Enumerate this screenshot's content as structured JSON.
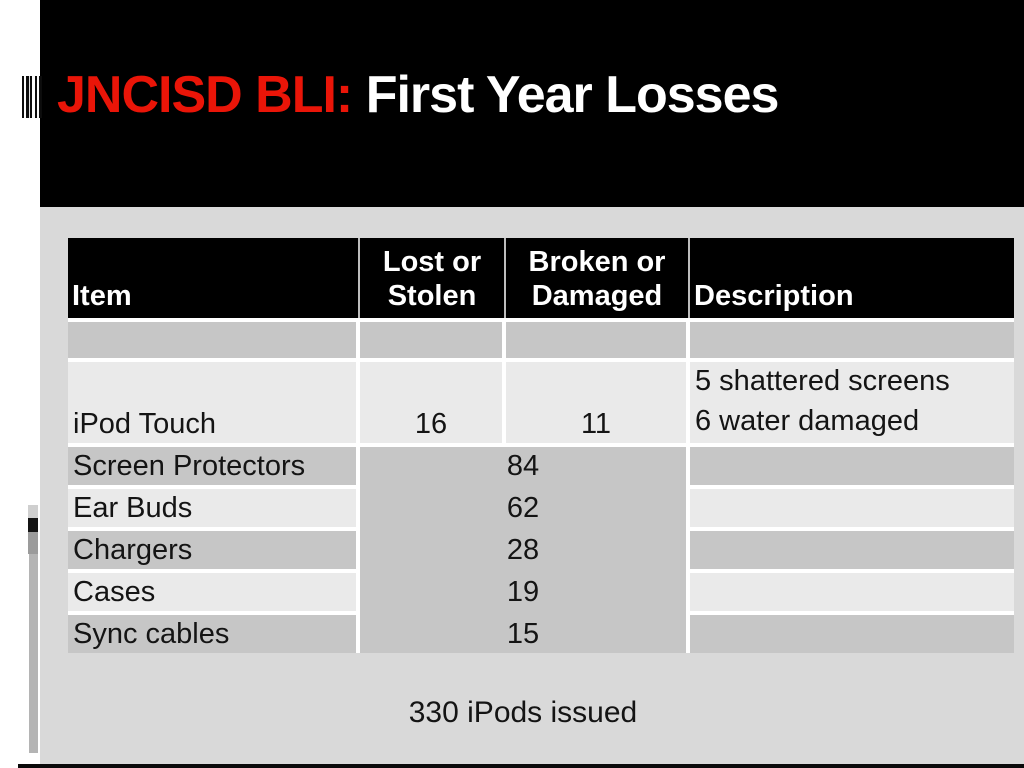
{
  "slide": {
    "title": {
      "prefix": "JNCISD BLI:",
      "rest": " First Year Losses"
    },
    "table": {
      "headers": {
        "item": "Item",
        "lost_line1": "Lost or",
        "lost_line2": "Stolen",
        "broken_line1": "Broken or",
        "broken_line2": "Damaged",
        "desc": "Description"
      },
      "rows": [
        {
          "item": "",
          "lost": "",
          "broken": "",
          "desc": ""
        },
        {
          "item": "iPod Touch",
          "lost": "16",
          "broken": "11",
          "desc_line1": "5 shattered screens",
          "desc_line2": "6 water damaged"
        },
        {
          "item": "Screen Protectors",
          "combined": "84",
          "desc": ""
        },
        {
          "item": "Ear Buds",
          "combined": "62",
          "desc": ""
        },
        {
          "item": "Chargers",
          "combined": "28",
          "desc": ""
        },
        {
          "item": "Cases",
          "combined": "19",
          "desc": ""
        },
        {
          "item": "Sync cables",
          "combined": "15",
          "desc": ""
        }
      ]
    },
    "footer_note": "330 iPods issued",
    "colors": {
      "title_accent": "#ea1508",
      "title_text": "#ffffff",
      "header_bg": "#000000",
      "slide_bg": "#d9d9d9",
      "row_dark": "#c6c6c6",
      "row_light": "#eaeaea"
    }
  }
}
